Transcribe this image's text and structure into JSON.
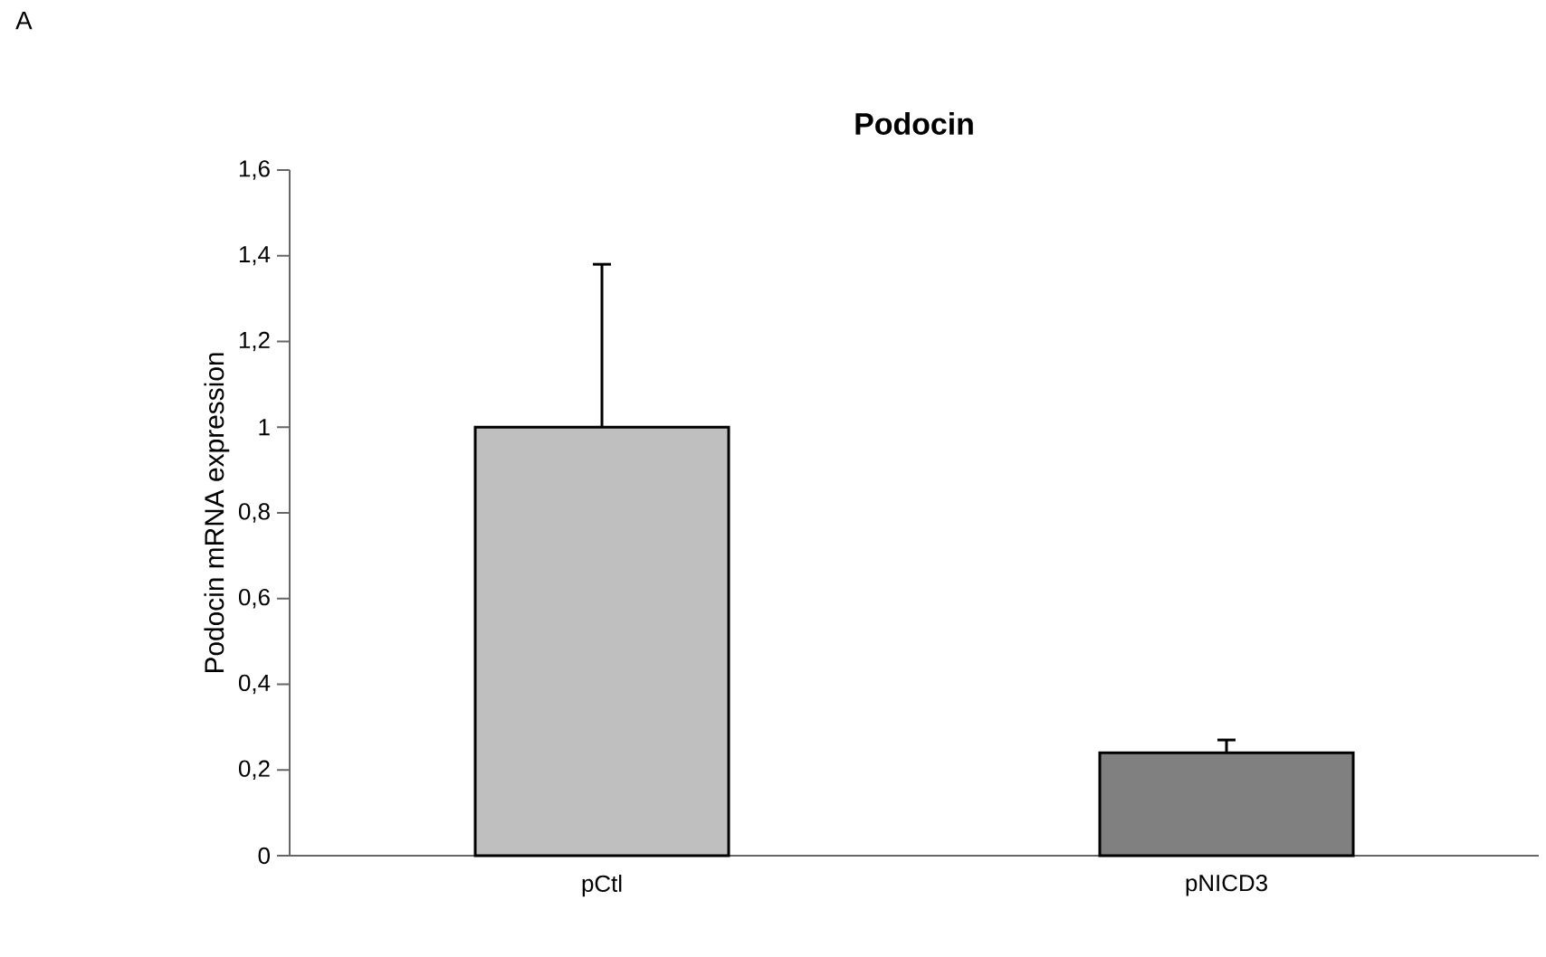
{
  "chart_data": {
    "type": "bar",
    "title": "Podocin",
    "ylabel": "Podocin mRNA expression",
    "annotations": [
      "A"
    ],
    "categories": [
      "pCtl",
      "pNICD3"
    ],
    "values": [
      1,
      0.24
    ],
    "colors": [
      "#bfbfbf",
      "#808080"
    ],
    "errors": [
      [
        1,
        1.38
      ],
      [
        0.24,
        0.27
      ]
    ],
    "ylim": [
      0,
      1.6
    ],
    "yticks": [
      0,
      {
        "value": 0.2,
        "label": "0,2"
      },
      {
        "value": 0.4,
        "label": "0,4"
      },
      {
        "value": 0.6,
        "label": "0,6"
      },
      {
        "value": 0.8,
        "label": "0,8"
      },
      1,
      {
        "value": 1.2,
        "label": "1,2"
      },
      {
        "value": 1.4,
        "label": "1,4"
      },
      {
        "value": 1.6,
        "label": "1,6"
      }
    ]
  }
}
